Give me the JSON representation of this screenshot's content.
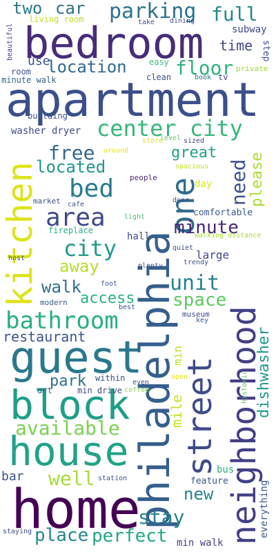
{
  "words": [
    {
      "key": "apartment",
      "text": "apartment",
      "color": "#3b4f8a"
    },
    {
      "key": "bedroom",
      "text": "bedroom",
      "color": "#472c7a"
    },
    {
      "key": "philadelphia",
      "text": "philadelphia",
      "color": "#355f8d"
    },
    {
      "key": "home",
      "text": "home",
      "color": "#440154"
    },
    {
      "key": "guest",
      "text": "guest",
      "color": "#2a788e"
    },
    {
      "key": "house",
      "text": "house",
      "color": "#20a386"
    },
    {
      "key": "block",
      "text": "block",
      "color": "#1f9e89"
    },
    {
      "key": "neighborhood",
      "text": "neighborhood",
      "color": "#433e85"
    },
    {
      "key": "street",
      "text": "street",
      "color": "#3e4a89"
    },
    {
      "key": "kitchen",
      "text": "kitchen",
      "color": "#dde318"
    },
    {
      "key": "one",
      "text": "one",
      "color": "#2f6c8e"
    },
    {
      "key": "center_city",
      "text": "center city",
      "color": "#35b779"
    },
    {
      "key": "bathroom",
      "text": "bathroom",
      "color": "#29af7f"
    },
    {
      "key": "parking",
      "text": "parking",
      "color": "#2c728e"
    },
    {
      "key": "bed",
      "text": "bed",
      "color": "#287c8e"
    },
    {
      "key": "area",
      "text": "area",
      "color": "#3e4989"
    },
    {
      "key": "city",
      "text": "city",
      "color": "#1e9b8a"
    },
    {
      "key": "available",
      "text": "available",
      "color": "#7ad151"
    },
    {
      "key": "location",
      "text": "location",
      "color": "#31678e"
    },
    {
      "key": "free",
      "text": "free",
      "color": "#32648e"
    },
    {
      "key": "unit",
      "text": "unit",
      "color": "#25838e"
    },
    {
      "key": "space",
      "text": "space",
      "color": "#5ec962"
    },
    {
      "key": "well",
      "text": "well",
      "color": "#a5db36"
    },
    {
      "key": "stay",
      "text": "stay",
      "color": "#26828e"
    },
    {
      "key": "place",
      "text": "place",
      "color": "#25858e"
    },
    {
      "key": "perfect",
      "text": "perfect",
      "color": "#22a884"
    },
    {
      "key": "floor",
      "text": "floor",
      "color": "#2db27d"
    },
    {
      "key": "located",
      "text": "located",
      "color": "#1f968b"
    },
    {
      "key": "full",
      "text": "full",
      "color": "#24868e"
    },
    {
      "key": "two",
      "text": "two",
      "color": "#2a788e"
    },
    {
      "key": "car",
      "text": "car",
      "color": "#2d708e"
    },
    {
      "key": "minute",
      "text": "minute",
      "color": "#482475"
    },
    {
      "key": "great",
      "text": "great",
      "color": "#1fa088"
    },
    {
      "key": "need",
      "text": "need",
      "color": "#3b528b"
    },
    {
      "key": "please",
      "text": "please",
      "color": "#addc30"
    },
    {
      "key": "walk",
      "text": "walk",
      "color": "#2e6e8e"
    },
    {
      "key": "access",
      "text": "access",
      "color": "#2ab07f"
    },
    {
      "key": "away",
      "text": "away",
      "color": "#b5de2b"
    },
    {
      "key": "restaurant",
      "text": "restaurant",
      "color": "#3b528b"
    },
    {
      "key": "park",
      "text": "park",
      "color": "#2e6f8e"
    },
    {
      "key": "dishwasher",
      "text": "dishwasher",
      "color": "#1f988b"
    },
    {
      "key": "mile",
      "text": "mile",
      "color": "#c8e020"
    },
    {
      "key": "min",
      "text": "min",
      "color": "#c0df25"
    },
    {
      "key": "new",
      "text": "new",
      "color": "#26828e"
    },
    {
      "key": "use",
      "text": "use",
      "color": "#3a548c"
    },
    {
      "key": "time",
      "text": "time",
      "color": "#414487"
    },
    {
      "key": "subway",
      "text": "subway",
      "color": "#404688"
    },
    {
      "key": "step",
      "text": "step",
      "color": "#3d4d8a"
    },
    {
      "key": "washer_dryer",
      "text": "washer dryer",
      "color": "#3e4a89"
    },
    {
      "key": "hall",
      "text": "hall",
      "color": "#3e4c8a"
    },
    {
      "key": "large",
      "text": "large",
      "color": "#3f4788"
    },
    {
      "key": "comfortable",
      "text": "comfortable",
      "color": "#38588c"
    },
    {
      "key": "bar",
      "text": "bar",
      "color": "#3d4e8a"
    },
    {
      "key": "everything",
      "text": "everything",
      "color": "#38598c"
    },
    {
      "key": "feature",
      "text": "feature",
      "color": "#39568c"
    },
    {
      "key": "bus",
      "text": "bus",
      "color": "#27ad81"
    },
    {
      "key": "min_walk",
      "text": "min walk",
      "color": "#433e85"
    },
    {
      "key": "living_room",
      "text": "living room",
      "color": "#c2df23"
    },
    {
      "key": "take",
      "text": "take",
      "color": "#3e4a89"
    },
    {
      "key": "dining",
      "text": "dining",
      "color": "#3f4889"
    },
    {
      "key": "beautiful",
      "text": "beautiful",
      "color": "#443983"
    },
    {
      "key": "room",
      "text": "room",
      "color": "#3b528b"
    },
    {
      "key": "minute_walk",
      "text": "minute walk",
      "color": "#34618d"
    },
    {
      "key": "easy",
      "text": "easy",
      "color": "#3dbc74"
    },
    {
      "key": "clean",
      "text": "clean",
      "color": "#39568c"
    },
    {
      "key": "book",
      "text": "book",
      "color": "#2d718e"
    },
    {
      "key": "tv",
      "text": "tv",
      "color": "#3f4889"
    },
    {
      "key": "private",
      "text": "private",
      "color": "#a0da39"
    },
    {
      "key": "building",
      "text": "building",
      "color": "#3b528b"
    },
    {
      "key": "store",
      "text": "store",
      "color": "#d8e219"
    },
    {
      "key": "sized",
      "text": "sized",
      "color": "#404688"
    },
    {
      "key": "level",
      "text": "level",
      "color": "#5ec962"
    },
    {
      "key": "around",
      "text": "around",
      "color": "#e5e419"
    },
    {
      "key": "spacious",
      "text": "spacious",
      "color": "#c2df23"
    },
    {
      "key": "people",
      "text": "people",
      "color": "#482878"
    },
    {
      "key": "day",
      "text": "day",
      "color": "#dde318"
    },
    {
      "key": "market",
      "text": "market",
      "color": "#3b528b"
    },
    {
      "key": "cafe",
      "text": "cafe",
      "color": "#3b528b"
    },
    {
      "key": "door",
      "text": "door",
      "color": "#3b528b"
    },
    {
      "key": "fireplace",
      "text": "fireplace",
      "color": "#2ab07f"
    },
    {
      "key": "light",
      "text": "light",
      "color": "#4ac16d"
    },
    {
      "key": "quiet",
      "text": "quiet",
      "color": "#3e4989"
    },
    {
      "key": "walking_distance",
      "text": "walking distance",
      "color": "#a8db34"
    },
    {
      "key": "host",
      "text": "host",
      "color": "#3b528b"
    },
    {
      "key": "plenty",
      "text": "plenty",
      "color": "#3b528b"
    },
    {
      "key": "trendy",
      "text": "trendy",
      "color": "#3b528b"
    },
    {
      "key": "foot",
      "text": "foot",
      "color": "#39568c"
    },
    {
      "key": "modern",
      "text": "modern",
      "color": "#38598c"
    },
    {
      "key": "best",
      "text": "best",
      "color": "#39568c"
    },
    {
      "key": "museum",
      "text": "museum",
      "color": "#3e4a89"
    },
    {
      "key": "key",
      "text": "key",
      "color": "#365c8d"
    },
    {
      "key": "within",
      "text": "within",
      "color": "#3b528b"
    },
    {
      "key": "even",
      "text": "even",
      "color": "#3f4889"
    },
    {
      "key": "open",
      "text": "open",
      "color": "#dde318"
    },
    {
      "key": "art",
      "text": "art",
      "color": "#32648e"
    },
    {
      "key": "min_drive",
      "text": "min drive",
      "color": "#3e4a89"
    },
    {
      "key": "coffee",
      "text": "coffee",
      "color": "#84d44b"
    },
    {
      "key": "historic",
      "text": "historic",
      "color": "#5ec962"
    },
    {
      "key": "station",
      "text": "station",
      "color": "#3b528b"
    },
    {
      "key": "staying",
      "text": "staying",
      "color": "#3e4a89"
    }
  ]
}
